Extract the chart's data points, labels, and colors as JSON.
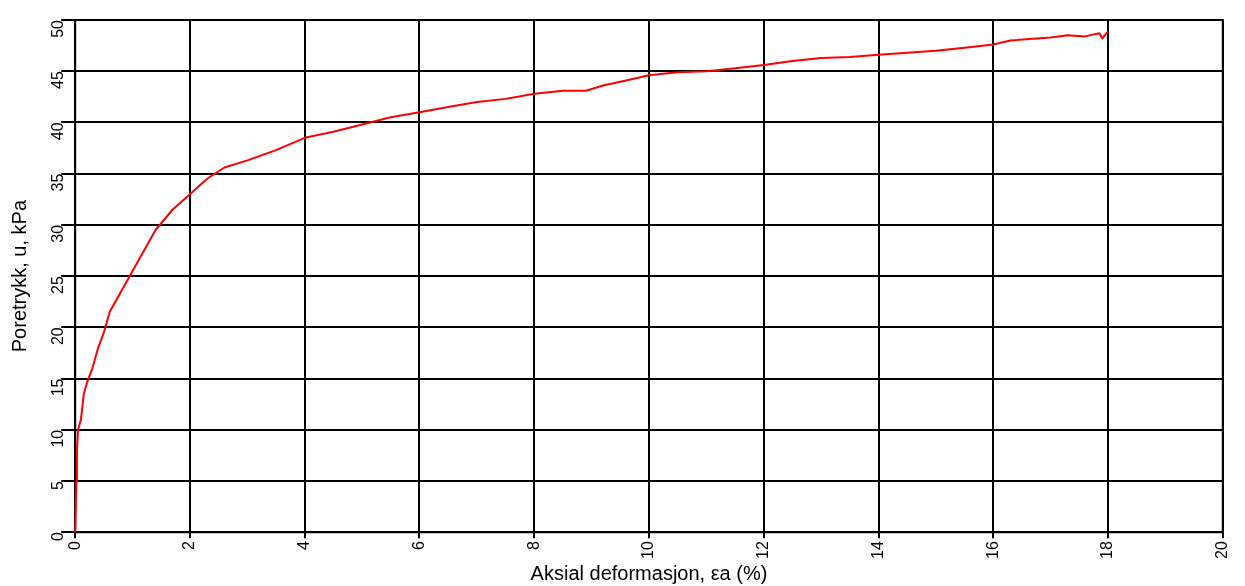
{
  "chart_data": {
    "type": "line",
    "xlabel": "Aksial deformasjon, εa (%)",
    "ylabel": "Poretrykk, u, kPa",
    "xlim": [
      0,
      20
    ],
    "xticks": [
      0,
      2,
      4,
      6,
      8,
      10,
      12,
      14,
      16,
      18,
      20
    ],
    "ylim": [
      0,
      50
    ],
    "yticks": [
      0,
      5,
      10,
      15,
      20,
      25,
      30,
      35,
      40,
      45,
      50
    ],
    "grid": true,
    "legend": false,
    "marker": "none",
    "line_style": "solid",
    "series": [
      {
        "color": "#ff0000",
        "x": [
          0,
          0.02,
          0.03,
          0.05,
          0.1,
          0.15,
          0.2,
          0.3,
          0.4,
          0.5,
          0.6,
          0.8,
          1.0,
          1.2,
          1.4,
          1.7,
          2.0,
          2.3,
          2.6,
          3.0,
          3.5,
          4.0,
          4.5,
          5.0,
          5.5,
          6.0,
          6.5,
          7.0,
          7.5,
          8.0,
          8.5,
          8.9,
          9.2,
          9.6,
          10,
          10.5,
          11,
          11.5,
          12,
          12.5,
          13,
          13.5,
          14,
          14.5,
          15,
          15.5,
          16,
          16.3,
          17,
          17.3,
          17.6,
          17.85,
          17.9,
          18
        ],
        "values": [
          0,
          5,
          8,
          10,
          11,
          13.5,
          14.5,
          16,
          18,
          19.5,
          21.5,
          23.5,
          25.5,
          27.5,
          29.5,
          31.5,
          33,
          34.5,
          35.6,
          36.3,
          37.3,
          38.5,
          39.1,
          39.8,
          40.5,
          41,
          41.5,
          42,
          42.3,
          42.8,
          43.1,
          43.1,
          43.6,
          44.1,
          44.6,
          44.9,
          45,
          45.3,
          45.6,
          46,
          46.3,
          46.4,
          46.6,
          46.8,
          47,
          47.3,
          47.6,
          48,
          48.3,
          48.5,
          48.4,
          48.7,
          48.2,
          48.9
        ]
      }
    ]
  }
}
